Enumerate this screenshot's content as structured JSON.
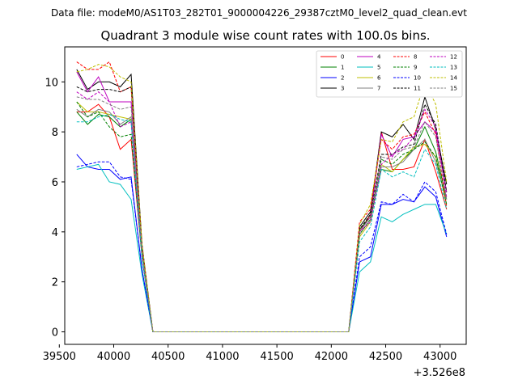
{
  "chart_data": {
    "type": "line",
    "supertitle": "Data file: modeM0/AS1T03_282T01_9000004226_29387cztM0_level2_quad_clean.evt",
    "title": "Quadrant 3 module wise count rates with 100.0s bins.",
    "xlabel": "",
    "ylabel": "",
    "x_offset_label": "+3.526e8",
    "xlim": [
      39550,
      43240
    ],
    "ylim": [
      -0.5,
      11.4
    ],
    "xticks": [
      39500,
      40000,
      40500,
      41000,
      41500,
      42000,
      42500,
      43000
    ],
    "xtick_labels": [
      "39500",
      "40000",
      "40500",
      "41000",
      "41500",
      "42000",
      "42500",
      "43000"
    ],
    "yticks": [
      0,
      2,
      4,
      6,
      8,
      10
    ],
    "ytick_labels": [
      "0",
      "2",
      "4",
      "6",
      "8",
      "10"
    ],
    "grid": false,
    "legend_position": "top-right",
    "x": [
      39660,
      39760,
      39860,
      39960,
      40060,
      40160,
      40260,
      40360,
      40460,
      40560,
      40660,
      40760,
      40860,
      40960,
      41060,
      41160,
      41260,
      41360,
      41460,
      41560,
      41660,
      41760,
      41860,
      41960,
      42060,
      42160,
      42260,
      42360,
      42460,
      42560,
      42660,
      42760,
      42860,
      42960,
      43060
    ],
    "series": [
      {
        "name": "0",
        "color": "#ff0000",
        "dash": "solid",
        "values": [
          8.8,
          8.8,
          9.1,
          8.6,
          7.3,
          7.7,
          3.0,
          0,
          0,
          0,
          0,
          0,
          0,
          0,
          0,
          0,
          0,
          0,
          0,
          0,
          0,
          0,
          0,
          0,
          0,
          0,
          4.0,
          4.7,
          8.0,
          6.5,
          6.5,
          6.6,
          7.7,
          6.4,
          4.9
        ]
      },
      {
        "name": "1",
        "color": "#008000",
        "dash": "solid",
        "values": [
          8.8,
          8.3,
          8.7,
          8.6,
          8.2,
          8.5,
          3.0,
          0,
          0,
          0,
          0,
          0,
          0,
          0,
          0,
          0,
          0,
          0,
          0,
          0,
          0,
          0,
          0,
          0,
          0,
          0,
          4.1,
          4.6,
          6.5,
          6.4,
          6.9,
          7.3,
          8.2,
          7.2,
          5.3
        ]
      },
      {
        "name": "2",
        "color": "#0000ff",
        "dash": "solid",
        "values": [
          7.1,
          6.6,
          6.5,
          6.5,
          6.1,
          6.2,
          2.5,
          0,
          0,
          0,
          0,
          0,
          0,
          0,
          0,
          0,
          0,
          0,
          0,
          0,
          0,
          0,
          0,
          0,
          0,
          0,
          2.8,
          3.0,
          5.1,
          5.1,
          5.3,
          5.2,
          5.8,
          5.4,
          3.8
        ]
      },
      {
        "name": "3",
        "color": "#000000",
        "dash": "solid",
        "values": [
          10.5,
          9.7,
          10.0,
          10.0,
          9.8,
          10.3,
          3.5,
          0,
          0,
          0,
          0,
          0,
          0,
          0,
          0,
          0,
          0,
          0,
          0,
          0,
          0,
          0,
          0,
          0,
          0,
          0,
          4.2,
          4.8,
          8.0,
          7.8,
          8.3,
          7.7,
          9.4,
          8.1,
          5.9
        ]
      },
      {
        "name": "4",
        "color": "#bf00bf",
        "dash": "solid",
        "values": [
          10.4,
          9.6,
          10.2,
          9.2,
          9.2,
          9.2,
          3.3,
          0,
          0,
          0,
          0,
          0,
          0,
          0,
          0,
          0,
          0,
          0,
          0,
          0,
          0,
          0,
          0,
          0,
          0,
          0,
          4.0,
          4.6,
          7.9,
          7.0,
          7.7,
          7.8,
          8.4,
          8.0,
          5.6
        ]
      },
      {
        "name": "5",
        "color": "#00bfbf",
        "dash": "solid",
        "values": [
          6.5,
          6.6,
          6.7,
          6.0,
          5.9,
          5.3,
          2.3,
          0,
          0,
          0,
          0,
          0,
          0,
          0,
          0,
          0,
          0,
          0,
          0,
          0,
          0,
          0,
          0,
          0,
          0,
          0,
          2.4,
          2.8,
          4.6,
          4.4,
          4.7,
          4.9,
          5.1,
          5.1,
          3.9
        ]
      },
      {
        "name": "6",
        "color": "#bfbf00",
        "dash": "solid",
        "values": [
          9.2,
          8.8,
          8.8,
          8.7,
          8.6,
          8.5,
          3.1,
          0,
          0,
          0,
          0,
          0,
          0,
          0,
          0,
          0,
          0,
          0,
          0,
          0,
          0,
          0,
          0,
          0,
          0,
          0,
          3.8,
          4.4,
          6.7,
          6.4,
          6.9,
          7.4,
          7.5,
          7.0,
          5.1
        ]
      },
      {
        "name": "7",
        "color": "#808080",
        "dash": "solid",
        "values": [
          8.9,
          8.6,
          8.9,
          8.8,
          8.3,
          8.6,
          3.1,
          0,
          0,
          0,
          0,
          0,
          0,
          0,
          0,
          0,
          0,
          0,
          0,
          0,
          0,
          0,
          0,
          0,
          0,
          0,
          3.9,
          4.5,
          6.6,
          6.6,
          6.8,
          7.3,
          7.7,
          6.8,
          5.3
        ]
      },
      {
        "name": "8",
        "color": "#ff0000",
        "dash": "dashed",
        "values": [
          10.8,
          10.5,
          10.5,
          10.8,
          9.6,
          9.8,
          3.4,
          0,
          0,
          0,
          0,
          0,
          0,
          0,
          0,
          0,
          0,
          0,
          0,
          0,
          0,
          0,
          0,
          0,
          0,
          0,
          4.4,
          4.9,
          7.7,
          7.3,
          7.8,
          7.9,
          8.8,
          7.9,
          5.0
        ]
      },
      {
        "name": "9",
        "color": "#008000",
        "dash": "dashed",
        "values": [
          9.2,
          8.6,
          8.8,
          8.2,
          7.8,
          7.9,
          3.0,
          0,
          0,
          0,
          0,
          0,
          0,
          0,
          0,
          0,
          0,
          0,
          0,
          0,
          0,
          0,
          0,
          0,
          0,
          0,
          3.9,
          4.5,
          6.9,
          6.7,
          7.1,
          7.3,
          7.6,
          7.0,
          5.1
        ]
      },
      {
        "name": "10",
        "color": "#0000ff",
        "dash": "dashed",
        "values": [
          6.6,
          6.7,
          6.8,
          6.8,
          6.2,
          6.1,
          2.5,
          0,
          0,
          0,
          0,
          0,
          0,
          0,
          0,
          0,
          0,
          0,
          0,
          0,
          0,
          0,
          0,
          0,
          0,
          0,
          3.0,
          3.4,
          5.2,
          5.1,
          5.5,
          5.2,
          6.0,
          5.6,
          3.9
        ]
      },
      {
        "name": "11",
        "color": "#000000",
        "dash": "dashed",
        "values": [
          9.8,
          9.6,
          9.7,
          9.7,
          9.6,
          9.8,
          3.4,
          0,
          0,
          0,
          0,
          0,
          0,
          0,
          0,
          0,
          0,
          0,
          0,
          0,
          0,
          0,
          0,
          0,
          0,
          0,
          4.1,
          4.7,
          7.1,
          7.1,
          7.4,
          7.5,
          9.1,
          8.3,
          5.6
        ]
      },
      {
        "name": "12",
        "color": "#bf00bf",
        "dash": "dashed",
        "values": [
          9.6,
          9.3,
          9.6,
          9.2,
          8.2,
          8.4,
          3.1,
          0,
          0,
          0,
          0,
          0,
          0,
          0,
          0,
          0,
          0,
          0,
          0,
          0,
          0,
          0,
          0,
          0,
          0,
          0,
          4.0,
          4.4,
          6.7,
          7.1,
          7.3,
          7.8,
          8.9,
          8.2,
          5.4
        ]
      },
      {
        "name": "13",
        "color": "#00bfbf",
        "dash": "dashed",
        "values": [
          8.4,
          8.4,
          8.6,
          8.7,
          8.5,
          8.4,
          3.0,
          0,
          0,
          0,
          0,
          0,
          0,
          0,
          0,
          0,
          0,
          0,
          0,
          0,
          0,
          0,
          0,
          0,
          0,
          0,
          3.6,
          4.2,
          6.5,
          6.2,
          6.4,
          6.2,
          7.3,
          6.7,
          4.9
        ]
      },
      {
        "name": "14",
        "color": "#bfbf00",
        "dash": "dashed",
        "values": [
          10.4,
          10.5,
          10.7,
          10.6,
          10.2,
          10.0,
          3.5,
          0,
          0,
          0,
          0,
          0,
          0,
          0,
          0,
          0,
          0,
          0,
          0,
          0,
          0,
          0,
          0,
          0,
          0,
          0,
          4.3,
          5.1,
          7.7,
          7.6,
          8.4,
          8.6,
          10.0,
          9.1,
          6.0
        ]
      },
      {
        "name": "15",
        "color": "#808080",
        "dash": "dashed",
        "values": [
          9.4,
          9.3,
          9.3,
          9.1,
          8.9,
          9.0,
          3.2,
          0,
          0,
          0,
          0,
          0,
          0,
          0,
          0,
          0,
          0,
          0,
          0,
          0,
          0,
          0,
          0,
          0,
          0,
          0,
          4.0,
          4.6,
          7.0,
          6.9,
          7.3,
          7.4,
          8.4,
          7.8,
          5.3
        ]
      }
    ]
  }
}
